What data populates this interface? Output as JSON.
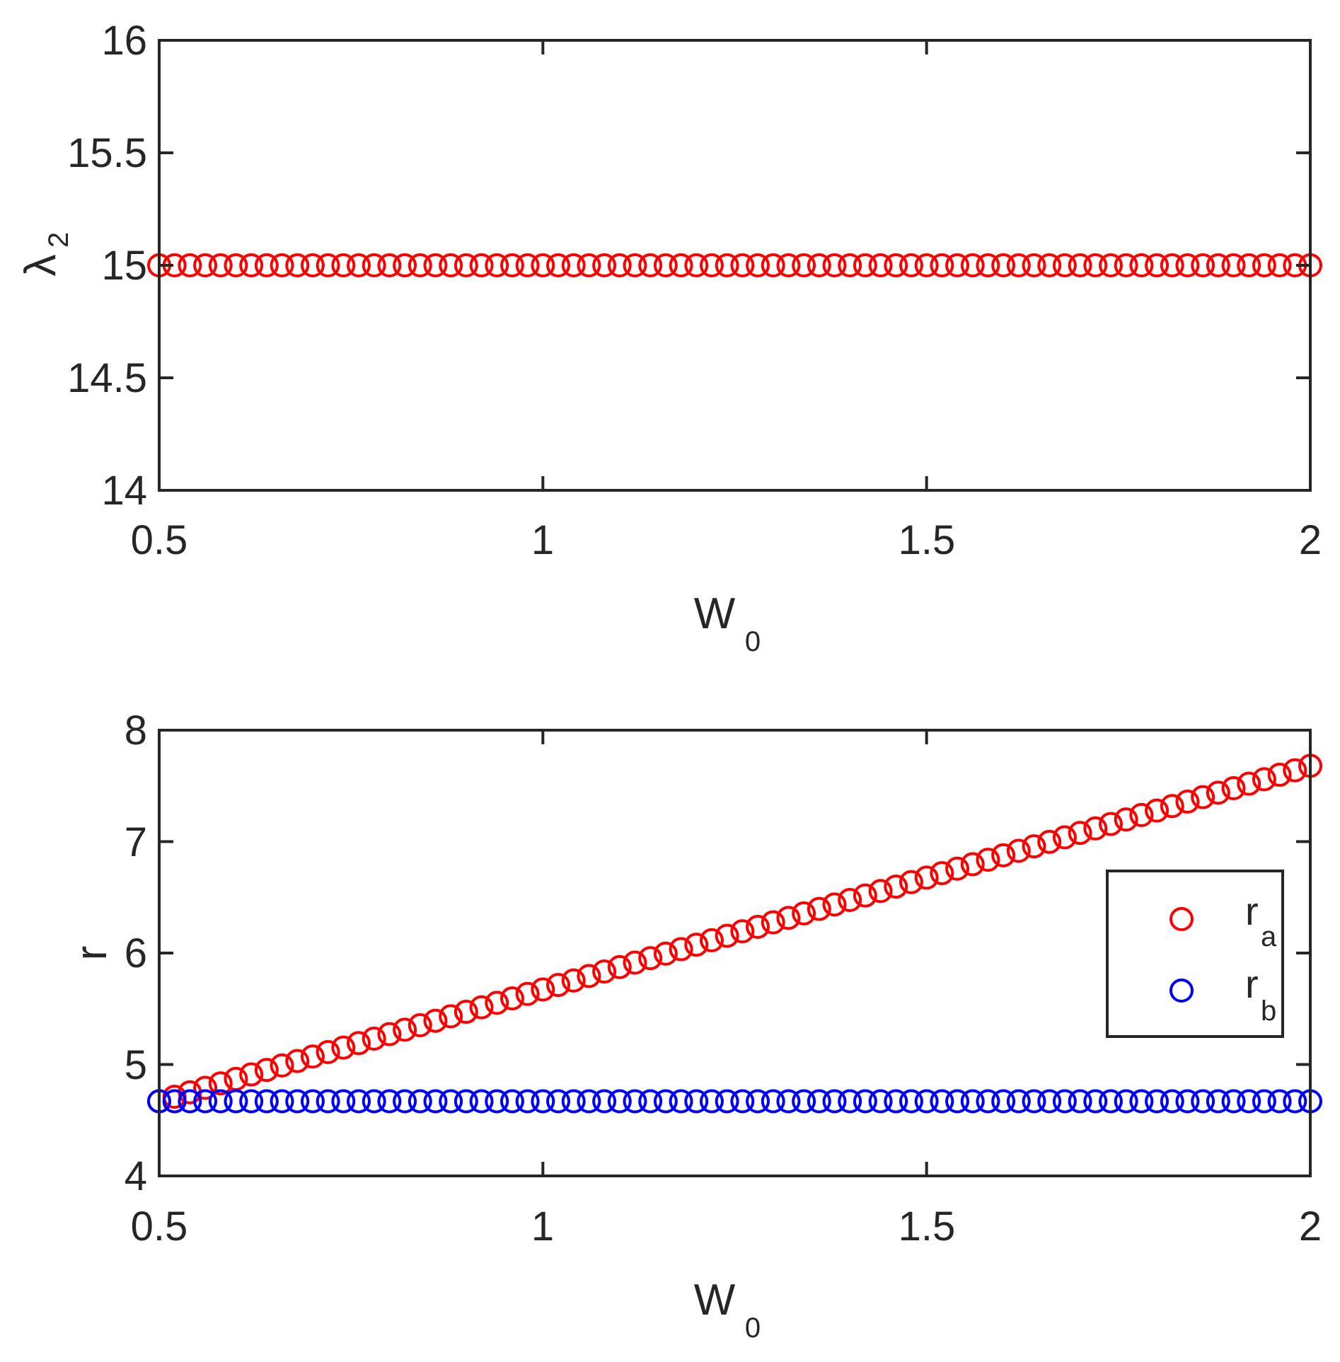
{
  "chart_data": [
    {
      "type": "scatter",
      "title": "",
      "xlabel": "W",
      "xlabel_sub": "0",
      "ylabel": "λ",
      "ylabel_sub": "2",
      "xlim": [
        0.5,
        2
      ],
      "ylim": [
        14,
        16
      ],
      "xticks": [
        "0.5",
        "1",
        "1.5",
        "2"
      ],
      "yticks": [
        "14",
        "14.5",
        "15",
        "15.5",
        "16"
      ],
      "grid": false,
      "marker": "circle-open",
      "series": [
        {
          "color": "#ff0000",
          "x_start": 0.5,
          "x_end": 2,
          "count": 76,
          "values": [
            15,
            15,
            15,
            15,
            15,
            15,
            15,
            15,
            15,
            15,
            15,
            15,
            15,
            15,
            15,
            15,
            15,
            15,
            15,
            15,
            15,
            15,
            15,
            15,
            15,
            15,
            15,
            15,
            15,
            15,
            15,
            15,
            15,
            15,
            15,
            15,
            15,
            15,
            15,
            15,
            15,
            15,
            15,
            15,
            15,
            15,
            15,
            15,
            15,
            15,
            15,
            15,
            15,
            15,
            15,
            15,
            15,
            15,
            15,
            15,
            15,
            15,
            15,
            15,
            15,
            15,
            15,
            15,
            15,
            15,
            15,
            15,
            15,
            15,
            15,
            15
          ]
        }
      ]
    },
    {
      "type": "scatter",
      "title": "",
      "xlabel": "W",
      "xlabel_sub": "0",
      "ylabel": "r",
      "ylabel_sub": "",
      "xlim": [
        0.5,
        2
      ],
      "ylim": [
        4,
        8
      ],
      "xticks": [
        "0.5",
        "1",
        "1.5",
        "2"
      ],
      "yticks": [
        "4",
        "5",
        "6",
        "7",
        "8"
      ],
      "grid": false,
      "marker": "circle-open",
      "legend": {
        "position": "right",
        "entries": [
          {
            "label": "r",
            "sub": "a",
            "color": "#ff0000"
          },
          {
            "label": "r",
            "sub": "b",
            "color": "#0000ff"
          }
        ]
      },
      "series": [
        {
          "color": "#ff0000",
          "x_start": 0.5,
          "x_end": 2,
          "count": 76,
          "linear_from": 4.67,
          "linear_to": 7.68
        },
        {
          "color": "#0000ff",
          "x_start": 0.5,
          "x_end": 2,
          "count": 76,
          "constant": 4.67
        }
      ]
    }
  ]
}
